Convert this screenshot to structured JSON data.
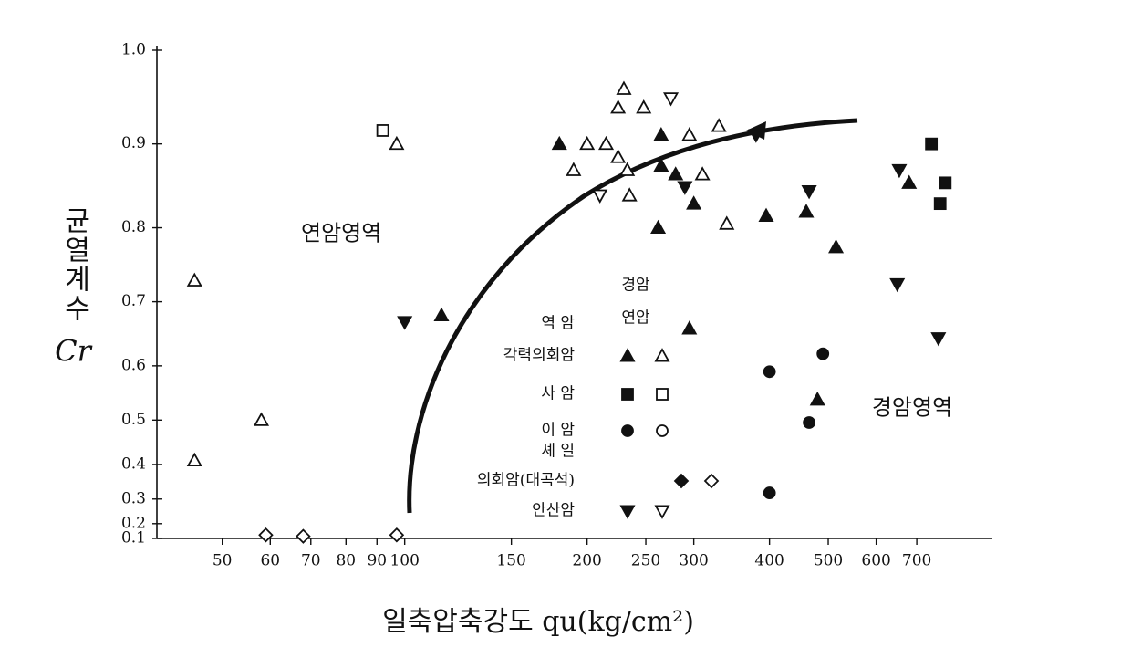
{
  "chart_data": {
    "type": "scatter",
    "xlabel": "일축압축강도  qu(kg/cm²)",
    "ylabel": "균열계수",
    "ylabel_symbol": "Cr",
    "xscale": "log",
    "yscale": "square",
    "xlim": [
      39,
      933
    ],
    "ylim": [
      0.1,
      1.0
    ],
    "xticks": [
      50,
      60,
      70,
      80,
      90,
      100,
      150,
      200,
      250,
      300,
      400,
      500,
      600,
      700
    ],
    "yticks": [
      {
        "value": 1,
        "label": "1.0"
      },
      0.9,
      0.8,
      0.7,
      0.6,
      0.5,
      0.4,
      0.3,
      0.2,
      0.1
    ],
    "annotations": [
      "연암영역",
      "경암영역"
    ],
    "legend_columns": [
      "경암",
      "연암"
    ],
    "groups": [
      {
        "label": "역 암"
      },
      {
        "label": "각력의회암",
        "hard": {
          "marker": "triangle",
          "filled": true,
          "x": [
            180,
            265,
            265,
            280,
            300,
            262,
            395,
            460,
            515,
            680,
            295,
            115,
            480
          ],
          "y": [
            0.9,
            0.91,
            0.875,
            0.865,
            0.83,
            0.8,
            0.815,
            0.82,
            0.775,
            0.855,
            0.66,
            0.68,
            0.54
          ]
        },
        "soft": {
          "marker": "triangle",
          "filled": false,
          "x": [
            45,
            45,
            58,
            97,
            230,
            225,
            248,
            200,
            215,
            190,
            225,
            233,
            235,
            295,
            330,
            310,
            340
          ],
          "y": [
            0.73,
            0.41,
            0.5,
            0.9,
            0.96,
            0.94,
            0.94,
            0.9,
            0.9,
            0.87,
            0.885,
            0.87,
            0.84,
            0.91,
            0.92,
            0.865,
            0.805
          ]
        }
      },
      {
        "label": "사 암",
        "hard": {
          "marker": "square",
          "filled": true,
          "x": [
            740,
            780,
            765
          ],
          "y": [
            0.9,
            0.855,
            0.83
          ]
        },
        "soft": {
          "marker": "square",
          "filled": false,
          "x": [
            92
          ],
          "y": [
            0.915
          ]
        }
      },
      {
        "label": "이 암",
        "hard": {
          "marker": "circle",
          "filled": true,
          "x": [
            400,
            490,
            465,
            400
          ],
          "y": [
            0.59,
            0.62,
            0.495,
            0.32
          ]
        },
        "soft": {
          "marker": "circle",
          "filled": false,
          "x": [],
          "y": []
        }
      },
      {
        "label": "셰 일"
      },
      {
        "label": "의회암(대곡석)",
        "hard": {
          "marker": "diamond",
          "filled": true,
          "x": [],
          "y": []
        },
        "soft": {
          "marker": "diamond",
          "filled": false,
          "x": [
            59,
            68,
            97
          ],
          "y": [
            0.13,
            0.12,
            0.13
          ]
        }
      },
      {
        "label": "안산암",
        "hard": {
          "marker": "down-triangle",
          "filled": true,
          "x": [
            100,
            290,
            380,
            465,
            655,
            650,
            760
          ],
          "y": [
            0.67,
            0.85,
            0.91,
            0.845,
            0.87,
            0.725,
            0.645
          ]
        },
        "soft": {
          "marker": "down-triangle",
          "filled": false,
          "x": [
            275,
            210
          ],
          "y": [
            0.95,
            0.84
          ]
        }
      }
    ],
    "color": "#111"
  }
}
